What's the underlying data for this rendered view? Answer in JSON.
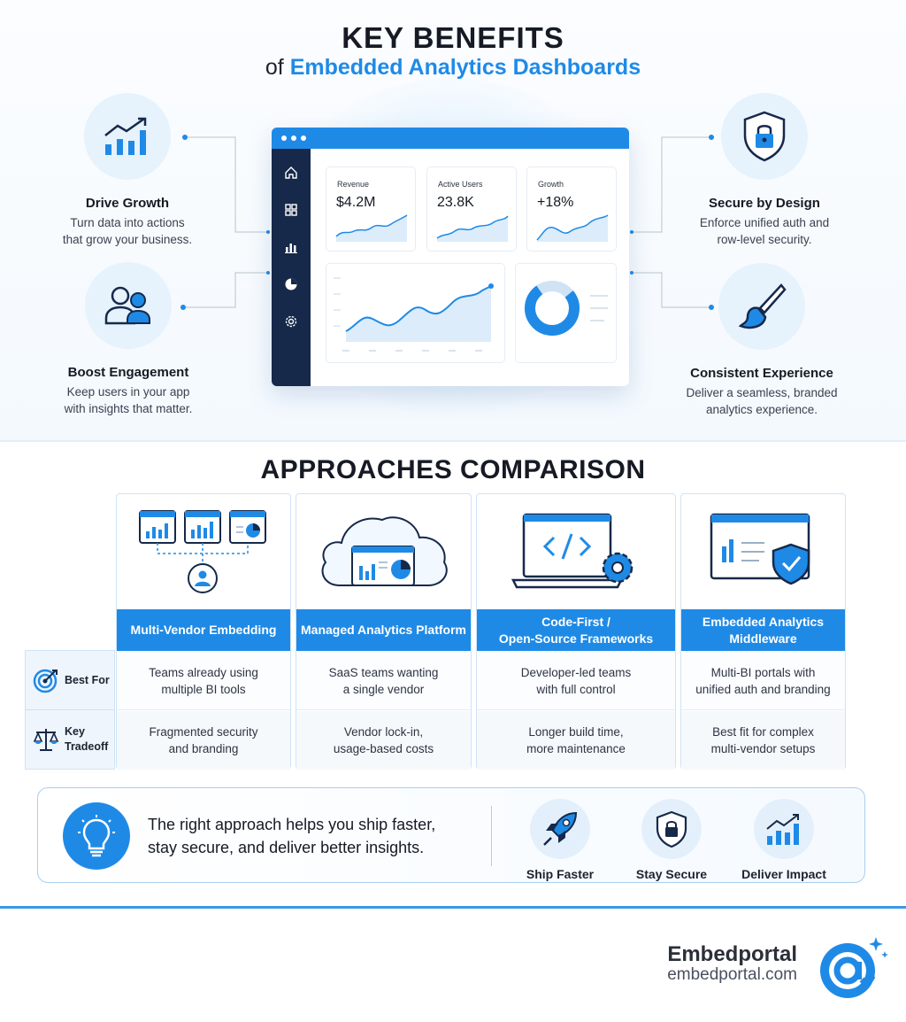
{
  "header": {
    "title": "KEY BENEFITS",
    "subtitle_prefix": "of",
    "subtitle_accent": "Embedded Analytics Dashboards"
  },
  "benefits": [
    {
      "title": "Drive Growth",
      "desc": "Turn data into actions\nthat grow your business.",
      "icon": "growth-chart-icon"
    },
    {
      "title": "Boost Engagement",
      "desc": "Keep users in your app\nwith insights that matter.",
      "icon": "users-icon"
    },
    {
      "title": "Secure by Design",
      "desc": "Enforce unified auth and\nrow-level security.",
      "icon": "shield-lock-icon"
    },
    {
      "title": "Consistent Experience",
      "desc": "Deliver a seamless, branded\nanalytics experience.",
      "icon": "paintbrush-icon"
    }
  ],
  "dashboard": {
    "kpis": [
      {
        "label": "Revenue",
        "value": "$4.2M"
      },
      {
        "label": "Active Users",
        "value": "23.8K"
      },
      {
        "label": "Growth",
        "value": "+18%"
      }
    ],
    "nav_icons": [
      "home-icon",
      "grid-icon",
      "bar-chart-icon",
      "pie-icon",
      "settings-icon"
    ]
  },
  "comparison": {
    "title": "APPROACHES COMPARISON",
    "row_labels": [
      "Best For",
      "Key\nTradeoff"
    ],
    "columns": [
      {
        "name": "Multi-Vendor Embedding",
        "best_for": "Teams already using\nmultiple BI tools",
        "tradeoff": "Fragmented security\nand branding"
      },
      {
        "name": "Managed Analytics Platform",
        "best_for": "SaaS teams wanting\na single vendor",
        "tradeoff": "Vendor lock-in,\nusage-based costs"
      },
      {
        "name": "Code-First /\nOpen-Source Frameworks",
        "best_for": "Developer-led teams\nwith full control",
        "tradeoff": "Longer build time,\nmore maintenance"
      },
      {
        "name": "Embedded Analytics\nMiddleware",
        "best_for": "Multi-BI portals with\nunified auth and branding",
        "tradeoff": "Best fit for complex\nmulti-vendor setups"
      }
    ]
  },
  "callout": {
    "message": "The right approach helps you ship faster,\nstay secure, and deliver better insights.",
    "badges": [
      {
        "label": "Ship Faster",
        "icon": "rocket-icon"
      },
      {
        "label": "Stay Secure",
        "icon": "shield-lock-icon"
      },
      {
        "label": "Deliver Impact",
        "icon": "growth-chart-icon"
      }
    ]
  },
  "brand": {
    "name": "Embedportal",
    "url": "embedportal.com"
  },
  "colors": {
    "accent": "#1f8ae6",
    "navy": "#16294a",
    "light": "#e6f2fc"
  }
}
